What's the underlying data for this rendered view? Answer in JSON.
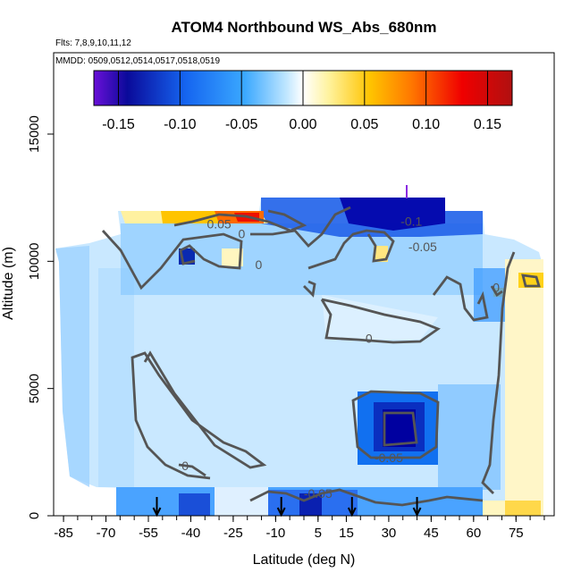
{
  "chart_data": {
    "type": "heatmap",
    "title": "ATOM4 Northbound WS_Abs_680nm",
    "subtitle_flights": "Flts: 7,8,9,10,11,12",
    "subtitle_dates": "MMDD: 0509,0512,0514,0517,0518,0519",
    "xlabel": "Latitude (deg N)",
    "ylabel": "Altitude (m)",
    "xlim": [
      -85,
      85
    ],
    "ylim": [
      0,
      17500
    ],
    "x_ticks": [
      -85,
      -70,
      -55,
      -40,
      -25,
      -10,
      5,
      15,
      30,
      45,
      60,
      75
    ],
    "y_ticks": [
      0,
      5000,
      10000,
      15000
    ],
    "colorbar": {
      "ticks": [
        -0.15,
        -0.1,
        -0.05,
        0.0,
        0.05,
        0.1,
        0.15
      ],
      "tick_labels": [
        "-0.15",
        "-0.10",
        "-0.05",
        "0.00",
        "0.05",
        "0.10",
        "0.15"
      ],
      "range": [
        -0.17,
        0.17
      ],
      "colors": [
        "#6a10d8",
        "#0a0a9a",
        "#1565f0",
        "#3aa8ff",
        "#bfe6ff",
        "#ffffff",
        "#fff3a0",
        "#ffc400",
        "#ff7700",
        "#f00000",
        "#b01010"
      ]
    },
    "contour_labels": [
      {
        "text": "0.05",
        "x": -30,
        "y": 11300
      },
      {
        "text": "0",
        "x": -22,
        "y": 10900
      },
      {
        "text": "0",
        "x": -16,
        "y": 9700
      },
      {
        "text": "-0.1",
        "x": 38,
        "y": 11400
      },
      {
        "text": "-0.05",
        "x": 42,
        "y": 10400
      },
      {
        "text": "0",
        "x": 23,
        "y": 6800
      },
      {
        "text": "0",
        "x": -42,
        "y": 1800
      },
      {
        "text": "-0.05",
        "x": 30,
        "y": 2100
      },
      {
        "text": "-0.05",
        "x": 5,
        "y": 700
      },
      {
        "text": "0",
        "x": 68,
        "y": 8800
      }
    ],
    "flight_arrows_latitude": [
      -52,
      -8,
      17,
      40
    ],
    "flight_marker_latitude": 34,
    "gridded_values": [
      {
        "x": -80,
        "y": 10000,
        "value": -0.04
      },
      {
        "x": -70,
        "y": 8000,
        "value": -0.02
      },
      {
        "x": -55,
        "y": 6000,
        "value": -0.02
      },
      {
        "x": -45,
        "y": 10000,
        "value": -0.06
      },
      {
        "x": -30,
        "y": 11300,
        "value": 0.08
      },
      {
        "x": -20,
        "y": 11500,
        "value": 0.12
      },
      {
        "x": -15,
        "y": 10000,
        "value": 0.02
      },
      {
        "x": 10,
        "y": 11800,
        "value": -0.08
      },
      {
        "x": 25,
        "y": 11800,
        "value": -0.14
      },
      {
        "x": 40,
        "y": 11000,
        "value": -0.1
      },
      {
        "x": 20,
        "y": 10300,
        "value": 0.03
      },
      {
        "x": 30,
        "y": 3500,
        "value": -0.1
      },
      {
        "x": 5,
        "y": 500,
        "value": -0.08
      },
      {
        "x": -30,
        "y": 500,
        "value": -0.06
      },
      {
        "x": 75,
        "y": 9500,
        "value": 0.06
      },
      {
        "x": 78,
        "y": 3000,
        "value": 0.03
      },
      {
        "x": 60,
        "y": 5000,
        "value": -0.02
      },
      {
        "x": 0,
        "y": 3000,
        "value": -0.01
      }
    ]
  }
}
